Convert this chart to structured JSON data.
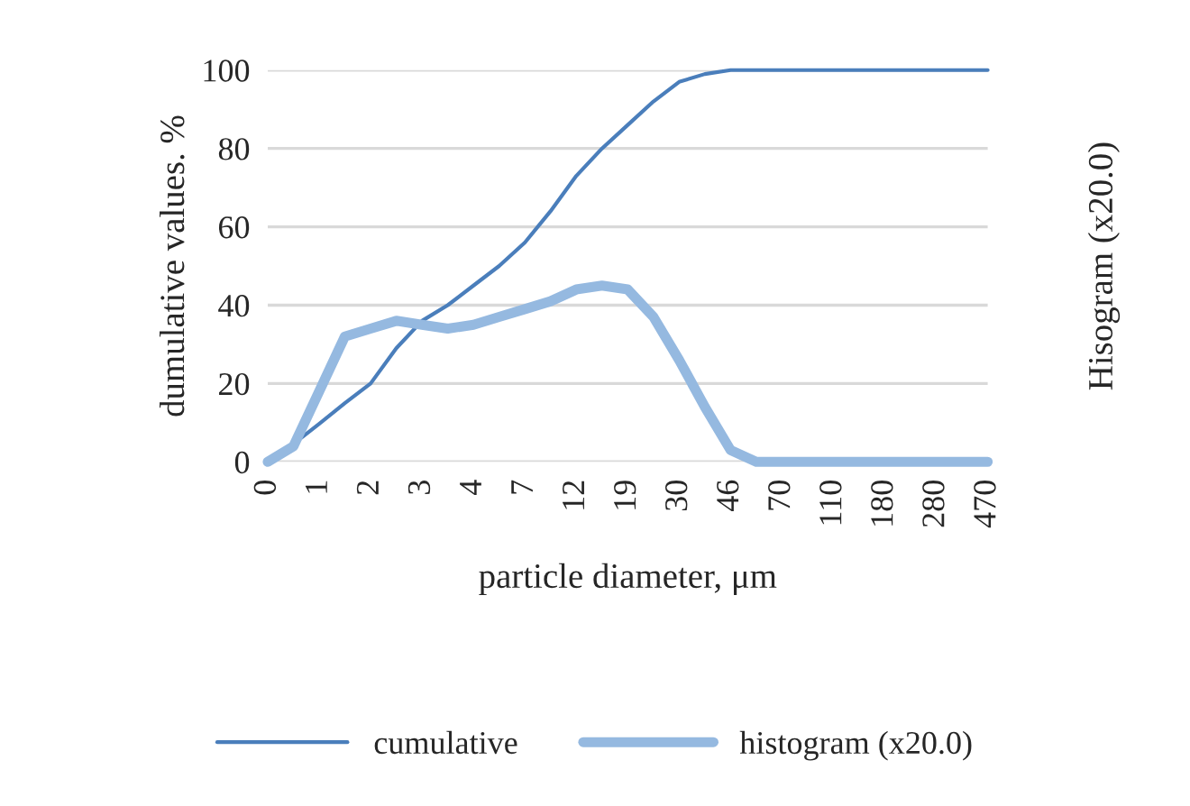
{
  "chart_data": {
    "type": "line",
    "xlabel": "particle diameter, μm",
    "ylabel": "dumulative values. %",
    "y2label": "Hisogram (x20.0)",
    "categories": [
      "0",
      null,
      "1",
      null,
      "2",
      null,
      "3",
      null,
      "4",
      null,
      "7",
      null,
      "12",
      null,
      "19",
      null,
      "30",
      null,
      "46",
      null,
      "70",
      null,
      "110",
      null,
      "180",
      null,
      "280",
      null,
      "470"
    ],
    "series": [
      {
        "name": "cumulative",
        "color": "#4a7ebb",
        "values": [
          0,
          4.6,
          9.7,
          15,
          20,
          29,
          36,
          40,
          45,
          50,
          56,
          64,
          73,
          80,
          86,
          92,
          97,
          99,
          100,
          100,
          100,
          100,
          100,
          100,
          100,
          100,
          100,
          100,
          100
        ]
      },
      {
        "name": "histogram (x20.0)",
        "color": "#95b9e0",
        "values": [
          0,
          4,
          18,
          32,
          34,
          36,
          35,
          34,
          35,
          37,
          39,
          41,
          44,
          45,
          44,
          37,
          26,
          14,
          3,
          0,
          0,
          0,
          0,
          0,
          0,
          0,
          0,
          0,
          0
        ]
      }
    ],
    "ylim": [
      0,
      100
    ],
    "yticks": [
      0,
      20,
      40,
      60,
      80,
      100
    ],
    "grid": "y",
    "legend": "bottom",
    "marker": "none",
    "line_style": "solid"
  }
}
